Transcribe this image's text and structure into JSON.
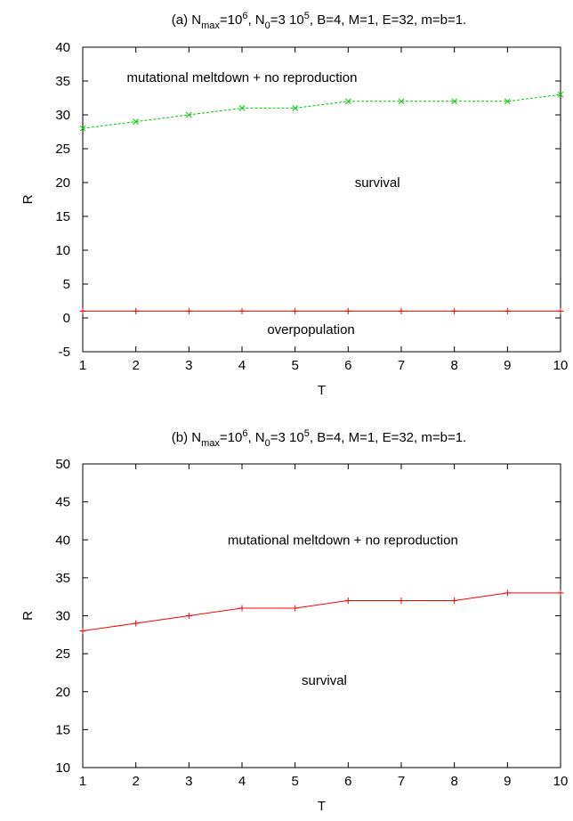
{
  "chart_data": [
    {
      "type": "line",
      "title": {
        "pre": "(a) N",
        "sub1": "max",
        "mid1": "=10",
        "sup1": "6",
        "mid2": ", N",
        "sub2": "0",
        "mid3": "=3 10",
        "sup2": "5",
        "post": ", B=4, M=1, E=32, m=b=1."
      },
      "xlabel": "T",
      "ylabel": "R",
      "xlim": [
        1,
        10
      ],
      "ylim": [
        -5,
        40
      ],
      "xticks": [
        1,
        2,
        3,
        4,
        5,
        6,
        7,
        8,
        9,
        10
      ],
      "yticks": [
        -5,
        0,
        5,
        10,
        15,
        20,
        25,
        30,
        35,
        40
      ],
      "grid": false,
      "x": [
        1,
        2,
        3,
        4,
        5,
        6,
        7,
        8,
        9,
        10
      ],
      "series": [
        {
          "values": [
            28,
            29,
            30,
            31,
            31,
            32,
            32,
            32,
            32,
            33
          ],
          "color": "#00cc00",
          "dashed": true,
          "marker": "x"
        },
        {
          "values": [
            1,
            1,
            1,
            1,
            1,
            1,
            1,
            1,
            1,
            1
          ],
          "color": "#ff0000",
          "dashed": false,
          "marker": "+"
        }
      ],
      "annotations": [
        {
          "text": "mutational meltdown + no reproduction",
          "x": 4.0,
          "y": 35.5
        },
        {
          "text": "survival",
          "x": 6.55,
          "y": 20.0
        },
        {
          "text": "overpopulation",
          "x": 5.3,
          "y": -1.7
        }
      ]
    },
    {
      "type": "line",
      "title": {
        "pre": "(b) N",
        "sub1": "max",
        "mid1": "=10",
        "sup1": "6",
        "mid2": ", N",
        "sub2": "0",
        "mid3": "=3 10",
        "sup2": "5",
        "post": ", B=4, M=1, E=32, m=b=1."
      },
      "xlabel": "T",
      "ylabel": "R",
      "xlim": [
        1,
        10
      ],
      "ylim": [
        10,
        50
      ],
      "xticks": [
        1,
        2,
        3,
        4,
        5,
        6,
        7,
        8,
        9,
        10
      ],
      "yticks": [
        10,
        15,
        20,
        25,
        30,
        35,
        40,
        45,
        50
      ],
      "grid": false,
      "x": [
        1,
        2,
        3,
        4,
        5,
        6,
        7,
        8,
        9,
        10
      ],
      "series": [
        {
          "values": [
            28,
            29,
            30,
            31,
            31,
            32,
            32,
            32,
            33,
            33
          ],
          "color": "#ff0000",
          "dashed": false,
          "marker": "+"
        }
      ],
      "annotations": [
        {
          "text": "mutational meltdown + no reproduction",
          "x": 5.9,
          "y": 40.0
        },
        {
          "text": "survival",
          "x": 5.55,
          "y": 21.5
        }
      ]
    }
  ]
}
